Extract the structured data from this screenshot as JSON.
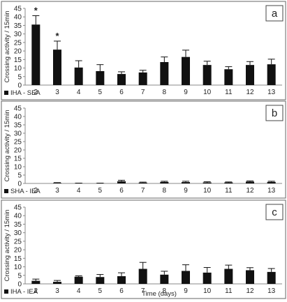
{
  "chart_data": [
    {
      "type": "bar",
      "panel_letter": "a",
      "ylabel": "Crossing activity / 15min",
      "xlabel": "",
      "legend": "IHA - SEA",
      "legend_placement": "bottom-left",
      "ylim": [
        0,
        45
      ],
      "yticks": [
        0,
        5,
        10,
        15,
        20,
        25,
        30,
        35,
        40,
        45
      ],
      "categories": [
        "2",
        "3",
        "4",
        "5",
        "6",
        "7",
        "8",
        "9",
        "10",
        "11",
        "12",
        "13"
      ],
      "values": [
        35.5,
        20.8,
        10.3,
        8.2,
        6.5,
        7.4,
        13.5,
        16.5,
        11.8,
        9.3,
        11.8,
        12.2
      ],
      "errors": [
        5.2,
        5.0,
        4.0,
        3.8,
        1.3,
        1.3,
        3.0,
        4.0,
        2.2,
        1.5,
        2.0,
        3.0
      ],
      "annotations": [
        "*",
        "*",
        "",
        "",
        "",
        "",
        "",
        "",
        "",
        "",
        "",
        ""
      ],
      "grid": false
    },
    {
      "type": "bar",
      "panel_letter": "b",
      "ylabel": "Crossing activity / 15min",
      "xlabel": "",
      "legend": "SHA - IEA",
      "legend_placement": "bottom-left",
      "ylim": [
        0,
        45
      ],
      "yticks": [
        0,
        5,
        10,
        15,
        20,
        25,
        30,
        35,
        40,
        45
      ],
      "categories": [
        "2",
        "3",
        "4",
        "5",
        "6",
        "7",
        "8",
        "9",
        "10",
        "11",
        "12",
        "13"
      ],
      "values": [
        0,
        0.3,
        0.1,
        0.1,
        1.3,
        0.5,
        0.9,
        0.8,
        0.6,
        0.6,
        1.1,
        0.9
      ],
      "errors": [
        0,
        0.2,
        0.1,
        0.1,
        0.6,
        0.3,
        0.4,
        0.5,
        0.4,
        0.3,
        0.4,
        0.4
      ],
      "annotations": [
        "",
        "",
        "",
        "",
        "",
        "",
        "",
        "",
        "",
        "",
        "",
        ""
      ],
      "grid": false
    },
    {
      "type": "bar",
      "panel_letter": "c",
      "ylabel": "Crossing activity / 15min",
      "xlabel": "Time (days)",
      "legend": "IHA - IEA",
      "legend_placement": "bottom-left",
      "ylim": [
        0,
        45
      ],
      "yticks": [
        0,
        5,
        10,
        15,
        20,
        25,
        30,
        35,
        40,
        45
      ],
      "categories": [
        "2",
        "3",
        "4",
        "5",
        "6",
        "7",
        "8",
        "9",
        "10",
        "11",
        "12",
        "13"
      ],
      "values": [
        1.8,
        1.2,
        4.2,
        4.0,
        4.5,
        8.8,
        5.4,
        7.6,
        6.6,
        8.8,
        8.0,
        7.0
      ],
      "errors": [
        1.0,
        0.8,
        0.5,
        1.5,
        2.0,
        3.8,
        2.0,
        3.6,
        3.0,
        2.2,
        1.5,
        2.0
      ],
      "annotations": [
        "",
        "",
        "",
        "",
        "",
        "",
        "",
        "",
        "",
        "",
        "",
        ""
      ],
      "grid": false
    }
  ]
}
